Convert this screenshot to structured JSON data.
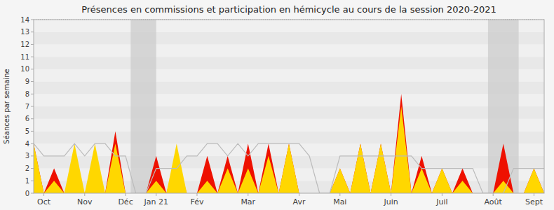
{
  "chart_data": {
    "type": "area",
    "title": "Présences en commissions et participation en hémicycle au cours de la session 2020-2021",
    "y_label": "Séances par semaine",
    "categories": [
      null,
      "Oct",
      null,
      null,
      null,
      "Nov",
      null,
      null,
      null,
      "Déc",
      null,
      null,
      "Jan 21",
      null,
      null,
      null,
      "Fév",
      null,
      null,
      null,
      null,
      "Mar",
      null,
      null,
      null,
      null,
      "Avr",
      null,
      null,
      null,
      "Mai",
      null,
      null,
      null,
      null,
      "Juin",
      null,
      null,
      null,
      null,
      "Juil",
      null,
      null,
      null,
      null,
      "Août",
      null,
      null,
      null,
      "Sept",
      null
    ],
    "series": [
      {
        "type": "area",
        "color": "#EE1100",
        "values": [
          4,
          0,
          2,
          0,
          2,
          0,
          2,
          0,
          5,
          0,
          0,
          0,
          3,
          0,
          3,
          0,
          0,
          3,
          0,
          3,
          0,
          4,
          0,
          4,
          0,
          4,
          0,
          0,
          0,
          0,
          2,
          0,
          4,
          0,
          4,
          0,
          8,
          0,
          3,
          0,
          2,
          0,
          2,
          0,
          0,
          0,
          4,
          0,
          0,
          2,
          0
        ]
      },
      {
        "type": "area",
        "color": "#FFD700",
        "values": [
          4,
          0,
          1,
          0,
          4,
          0,
          4,
          0,
          4,
          0,
          0,
          0,
          1,
          0,
          4,
          0,
          0,
          1,
          0,
          2,
          0,
          2,
          0,
          3,
          0,
          4,
          0,
          0,
          0,
          0,
          2,
          0,
          4,
          0,
          4,
          0,
          7,
          0,
          2,
          0,
          2,
          0,
          1,
          0,
          0,
          0,
          1,
          0,
          0,
          2,
          0
        ]
      },
      {
        "type": "line",
        "color": "#bbbbbb",
        "values": [
          4,
          3,
          3,
          3,
          4,
          3,
          4,
          4,
          3,
          3,
          0,
          0,
          2,
          2,
          2,
          3,
          3,
          4,
          4,
          3,
          4,
          3,
          4,
          4,
          4,
          4,
          4,
          3,
          0,
          0,
          3,
          3,
          3,
          3,
          3,
          3,
          3,
          3,
          2,
          2,
          2,
          2,
          2,
          2,
          0,
          0,
          0,
          2,
          2,
          2,
          2
        ]
      }
    ],
    "bands": {
      "color": "#cccccc",
      "ranges": [
        [
          9.5,
          12.0
        ],
        [
          44.5,
          47.5
        ]
      ]
    },
    "hlines": [
      14
    ],
    "ylim": [
      0,
      14
    ],
    "yticks": [
      0,
      1,
      2,
      3,
      4,
      5,
      6,
      7,
      8,
      9,
      10,
      11,
      12,
      13,
      14
    ],
    "grid": true
  }
}
